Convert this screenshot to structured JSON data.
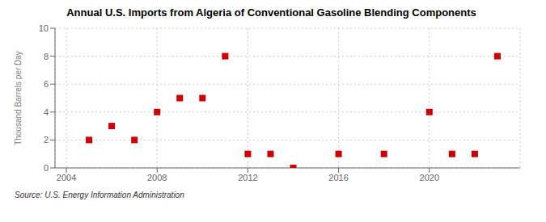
{
  "chart_data": {
    "type": "scatter",
    "title": "Annual U.S. Imports from Algeria of Conventional Gasoline Blending Components",
    "ylabel": "Thousand Barrels per Day",
    "annotations": [
      "Source: U.S. Energy Information Administration"
    ],
    "x": [
      2005,
      2006,
      2007,
      2008,
      2009,
      2010,
      2011,
      2012,
      2013,
      2014,
      2016,
      2018,
      2020,
      2021,
      2022,
      2023
    ],
    "values": [
      2,
      3,
      2,
      4,
      5,
      5,
      8,
      1,
      1,
      0,
      1,
      1,
      4,
      1,
      1,
      8
    ],
    "color": "#cc0000",
    "marker": "square",
    "xlim": [
      2003.5,
      2024
    ],
    "ylim": [
      0,
      10
    ],
    "xticks": [
      2004,
      2008,
      2012,
      2016,
      2020
    ],
    "yticks": [
      0,
      2,
      4,
      6,
      8,
      10
    ],
    "grid": true
  }
}
